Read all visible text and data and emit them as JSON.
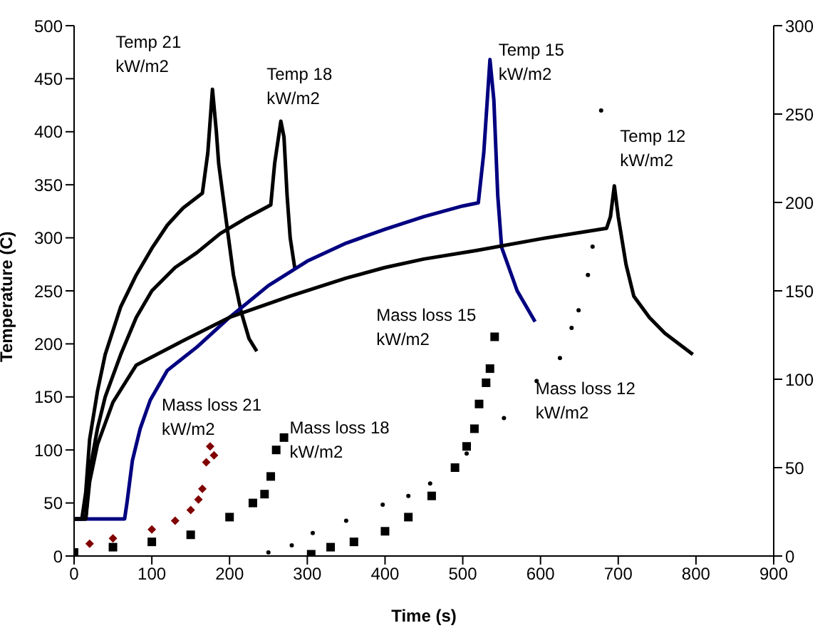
{
  "chart_data": {
    "type": "line",
    "xlabel": "Time (s)",
    "ylabel": "Temperature (C)",
    "xlim": [
      0,
      900
    ],
    "xticks": [
      0,
      100,
      200,
      300,
      400,
      500,
      600,
      700,
      800,
      900
    ],
    "ylim": [
      0,
      500
    ],
    "yticks": [
      0,
      50,
      100,
      150,
      200,
      250,
      300,
      350,
      400,
      450,
      500
    ],
    "y2lim": [
      0,
      300
    ],
    "y2ticks": [
      0,
      50,
      100,
      150,
      200,
      250,
      300
    ],
    "grid": false,
    "series": [
      {
        "name": "Temp 21\nkW/m2",
        "marker": "none",
        "color": "#000000",
        "x": [
          0,
          10,
          15,
          20,
          30,
          40,
          60,
          80,
          100,
          120,
          140,
          165,
          172,
          178,
          183,
          186,
          195,
          205,
          215,
          225,
          235
        ],
        "values": [
          35,
          35,
          60,
          110,
          155,
          190,
          235,
          265,
          290,
          312,
          328,
          342,
          380,
          440,
          400,
          370,
          320,
          265,
          230,
          205,
          193
        ]
      },
      {
        "name": "Temp 18\nkW/m2",
        "marker": "none",
        "color": "#000000",
        "x": [
          0,
          15,
          20,
          30,
          40,
          60,
          80,
          100,
          130,
          158,
          188,
          220,
          253,
          258,
          266,
          270,
          274,
          278,
          284
        ],
        "values": [
          35,
          35,
          80,
          120,
          150,
          190,
          225,
          250,
          272,
          286,
          304,
          318,
          331,
          370,
          410,
          395,
          340,
          300,
          271
        ]
      },
      {
        "name": "Temp 15\nkW/m2",
        "marker": "none",
        "color": "#000080",
        "x": [
          0,
          65,
          68,
          75,
          85,
          98,
          120,
          158,
          200,
          250,
          300,
          350,
          400,
          450,
          500,
          520,
          527,
          535,
          540,
          545,
          550,
          570,
          593
        ],
        "values": [
          35,
          35,
          50,
          90,
          120,
          147,
          175,
          197,
          225,
          255,
          278,
          295,
          308,
          320,
          330,
          333,
          380,
          468,
          430,
          340,
          291,
          250,
          221
        ]
      },
      {
        "name": "Temp 12\nkW/m2",
        "marker": "none",
        "color": "#000000",
        "x": [
          0,
          15,
          20,
          30,
          50,
          80,
          135,
          200,
          278,
          350,
          400,
          450,
          517,
          600,
          685,
          690,
          695,
          700,
          710,
          720,
          740,
          760,
          796
        ],
        "values": [
          35,
          35,
          70,
          105,
          145,
          180,
          201,
          225,
          245,
          262,
          272,
          280,
          288,
          299,
          309,
          320,
          349,
          320,
          275,
          245,
          225,
          210,
          190
        ]
      },
      {
        "name": "Mass loss 21\nkW/m2",
        "type": "scatter",
        "axis": "y2",
        "marker": "diamond",
        "color": "#800000",
        "x": [
          20,
          50,
          100,
          130,
          150,
          160,
          165,
          170,
          175,
          180
        ],
        "values": [
          7,
          10,
          15,
          20,
          26,
          32,
          38,
          53,
          62,
          57
        ]
      },
      {
        "name": "Mass loss 18\nkW/m2",
        "type": "scatter",
        "axis": "y2",
        "marker": "square",
        "color": "#000000",
        "x": [
          0,
          50,
          100,
          150,
          200,
          230,
          245,
          253,
          260,
          270
        ],
        "values": [
          2,
          5,
          8,
          12,
          22,
          30,
          35,
          45,
          60,
          67
        ]
      },
      {
        "name": "Mass loss 15\nkW/m2",
        "type": "scatter",
        "axis": "y2",
        "marker": "square",
        "color": "#000000",
        "x": [
          305,
          330,
          360,
          400,
          430,
          460,
          490,
          505,
          515,
          521,
          530,
          535,
          541
        ],
        "values": [
          1,
          5,
          8,
          14,
          22,
          34,
          50,
          62,
          72,
          86,
          98,
          106,
          124
        ]
      },
      {
        "name": "Mass loss 12\nkW/m2",
        "type": "scatter",
        "axis": "y2",
        "marker": "circle",
        "color": "#000000",
        "x": [
          250,
          280,
          307,
          350,
          397,
          430,
          458,
          505,
          553,
          595,
          625,
          640,
          649,
          661,
          667,
          678
        ],
        "values": [
          2,
          6,
          13,
          20,
          29,
          34,
          41,
          58,
          78,
          99,
          112,
          129,
          139,
          159,
          175,
          252
        ]
      }
    ]
  }
}
